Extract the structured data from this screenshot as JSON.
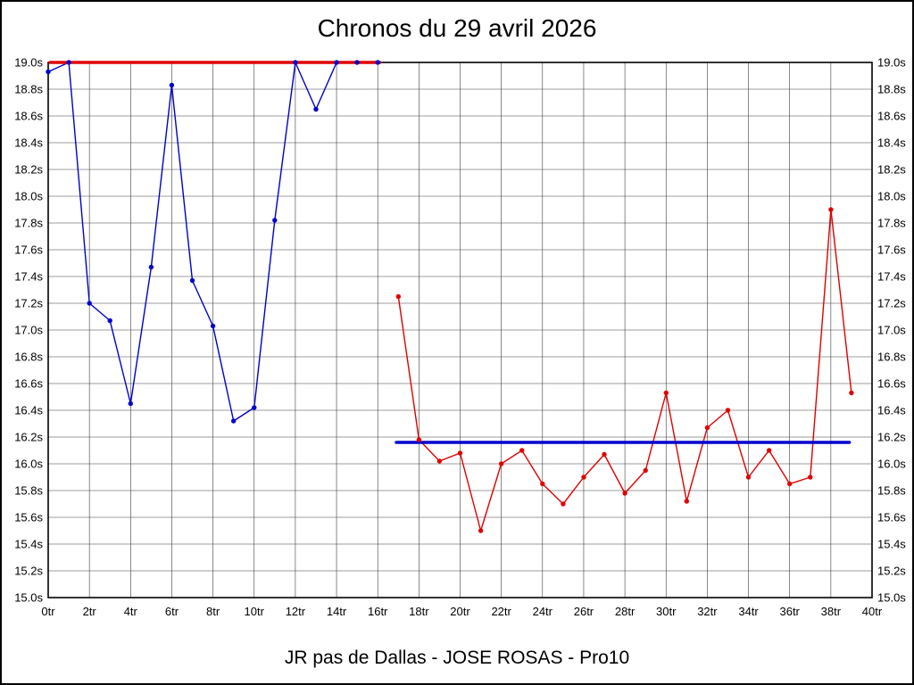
{
  "header": {
    "title": "Chronos du 29 avril 2026"
  },
  "footer": {
    "caption": "JR pas de Dallas - JOSE ROSAS - Pro10"
  },
  "chart_data": {
    "type": "line",
    "title": "Chronos du 29 avril 2026",
    "subtitle": "JR pas de Dallas - JOSE ROSAS - Pro10",
    "xlabel": "",
    "ylabel": "",
    "xlim": [
      0,
      40
    ],
    "ylim": [
      15.0,
      19.0
    ],
    "grid": true,
    "legend": "none",
    "x_ticks": [
      "0tr",
      "2tr",
      "4tr",
      "6tr",
      "8tr",
      "10tr",
      "12tr",
      "14tr",
      "16tr",
      "18tr",
      "20tr",
      "22tr",
      "24tr",
      "26tr",
      "28tr",
      "30tr",
      "32tr",
      "34tr",
      "36tr",
      "38tr",
      "40tr"
    ],
    "y_ticks": [
      "19.0s",
      "18.8s",
      "18.6s",
      "18.4s",
      "18.2s",
      "18.0s",
      "17.8s",
      "17.6s",
      "17.4s",
      "17.2s",
      "17.0s",
      "16.8s",
      "16.6s",
      "16.4s",
      "16.2s",
      "16.0s",
      "15.8s",
      "15.6s",
      "15.4s",
      "15.2s",
      "15.0s"
    ],
    "colors": {
      "blue": "#0000cc",
      "red": "#e00000"
    },
    "series": [
      {
        "name": "chronos-premiere-partie-bleu",
        "color": "#0000cc",
        "width": 1.4,
        "markers": true,
        "x": [
          0,
          1,
          2,
          3,
          4,
          5,
          6,
          7,
          8,
          9,
          10,
          11,
          12,
          13,
          14,
          15,
          16
        ],
        "y": [
          18.93,
          19.0,
          17.2,
          17.07,
          16.45,
          17.47,
          18.83,
          17.37,
          17.03,
          16.32,
          16.42,
          17.82,
          19.0,
          18.65,
          19.0,
          19.0,
          19.0
        ]
      },
      {
        "name": "chronos-deuxieme-partie-rouge",
        "color": "#e00000",
        "width": 1.4,
        "markers": true,
        "x": [
          17,
          18,
          19,
          20,
          21,
          22,
          23,
          24,
          25,
          26,
          27,
          28,
          29,
          30,
          31,
          32,
          33,
          34,
          35,
          36,
          37,
          38,
          39
        ],
        "y": [
          17.25,
          16.18,
          16.02,
          16.08,
          15.5,
          16.0,
          16.1,
          15.85,
          15.7,
          15.9,
          16.07,
          15.78,
          15.95,
          16.53,
          15.72,
          16.27,
          16.4,
          15.9,
          16.1,
          15.85,
          15.9,
          17.9,
          16.53
        ]
      },
      {
        "name": "ligne-reference-rouge-19s",
        "color": "#e00000",
        "width": 3.5,
        "markers": false,
        "x": [
          0.1,
          16.1
        ],
        "y": [
          19.0,
          19.0
        ]
      },
      {
        "name": "ligne-reference-bleue-moyenne",
        "color": "#0000cc",
        "width": 3.5,
        "markers": false,
        "x": [
          16.9,
          38.9
        ],
        "y": [
          16.16,
          16.16
        ]
      }
    ]
  }
}
